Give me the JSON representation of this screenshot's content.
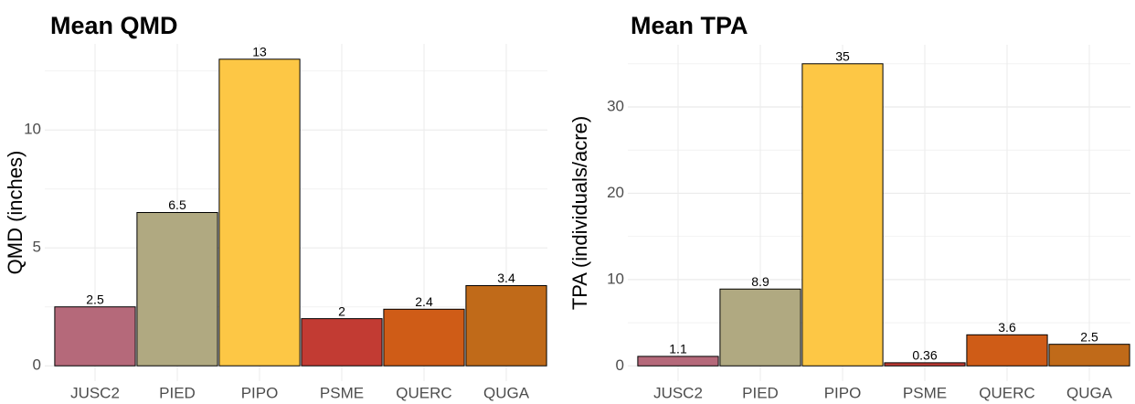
{
  "chart_data": [
    {
      "type": "bar",
      "title": "Mean QMD",
      "y_label": "QMD (inches)",
      "categories": [
        "JUSC2",
        "PIED",
        "PIPO",
        "PSME",
        "QUERC",
        "QUGA"
      ],
      "values": [
        2.5,
        6.5,
        13,
        2,
        2.4,
        3.4
      ],
      "colors": [
        "#b5697a",
        "#b0a981",
        "#fdc745",
        "#c23b33",
        "#cf5c17",
        "#c06a19"
      ],
      "ylim": [
        -0.65,
        13.65
      ],
      "yticks": [
        0,
        5,
        10
      ],
      "minor_yticks": [
        2.5,
        7.5,
        12.5
      ],
      "grid": true
    },
    {
      "type": "bar",
      "title": "Mean TPA",
      "y_label": "TPA (individuals/acre)",
      "categories": [
        "JUSC2",
        "PIED",
        "PIPO",
        "PSME",
        "QUERC",
        "QUGA"
      ],
      "values": [
        1.1,
        8.9,
        35,
        0.36,
        3.6,
        2.5
      ],
      "colors": [
        "#b5697a",
        "#b0a981",
        "#fdc745",
        "#c23b33",
        "#cf5c17",
        "#c06a19"
      ],
      "ylim": [
        -1.77,
        37.2
      ],
      "yticks": [
        0,
        10,
        20,
        30
      ],
      "minor_yticks": [
        5,
        15,
        25,
        35
      ],
      "grid": true
    }
  ]
}
